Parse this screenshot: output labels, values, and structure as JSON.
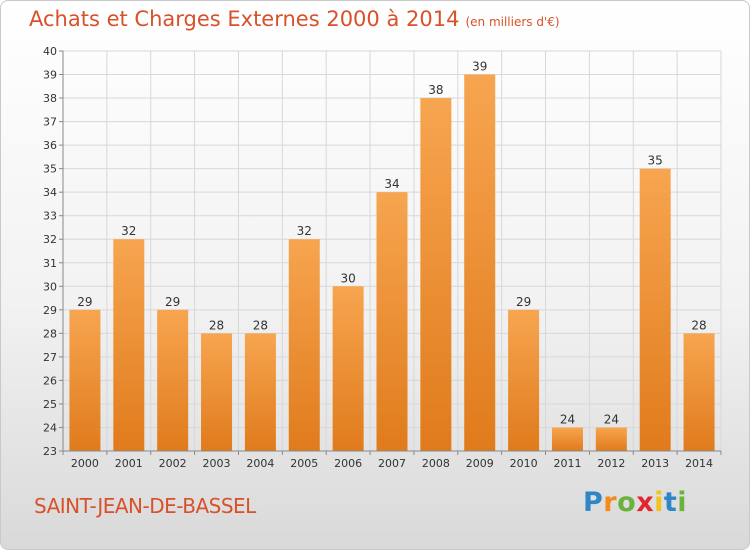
{
  "chart_data": {
    "type": "bar",
    "title": "Achats et Charges Externes 2000 à 2014",
    "subtitle": "(en milliers d'€)",
    "categories": [
      "2000",
      "2001",
      "2002",
      "2003",
      "2004",
      "2005",
      "2006",
      "2007",
      "2008",
      "2009",
      "2010",
      "2011",
      "2012",
      "2013",
      "2014"
    ],
    "values": [
      29,
      32,
      29,
      28,
      28,
      32,
      30,
      34,
      38,
      39,
      29,
      24,
      24,
      35,
      28
    ],
    "ylim": [
      23,
      40
    ],
    "ytick_step": 1,
    "grid": true,
    "xlabel": "",
    "ylabel": "",
    "bar_colors": {
      "top": "#f7a550",
      "bottom": "#e07b1c"
    }
  },
  "commune": "SAINT-JEAN-DE-BASSEL",
  "logo": {
    "letters": [
      "P",
      "r",
      "o",
      "x",
      "i",
      "t",
      "i"
    ],
    "colors": [
      "#2d86c7",
      "#f28a1c",
      "#6ab23c",
      "#e3262e",
      "#f2c318",
      "#2d86c7",
      "#6ab23c"
    ]
  },
  "colors": {
    "title": "#d8512a",
    "grid": "#d8d8d8",
    "axis": "#888888"
  }
}
